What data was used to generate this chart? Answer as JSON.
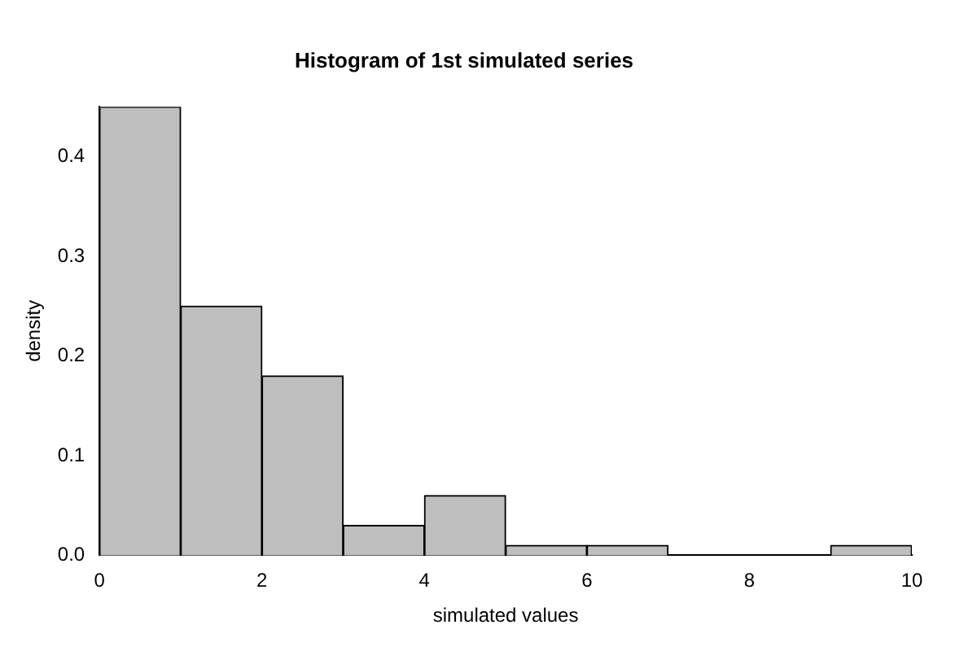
{
  "chart_data": {
    "type": "histogram",
    "title": "Histogram of 1st simulated series",
    "xlabel": "simulated values",
    "ylabel": "density",
    "bins": [
      0,
      1,
      2,
      3,
      4,
      5,
      6,
      7,
      8,
      9,
      10
    ],
    "values": [
      0.45,
      0.25,
      0.18,
      0.03,
      0.06,
      0.01,
      0.01,
      0,
      0,
      0.01
    ],
    "color": "#bebebe",
    "xlim": [
      0,
      10
    ],
    "xticks": [
      0,
      2,
      4,
      6,
      8,
      10
    ],
    "ylim": [
      0,
      0.45
    ],
    "yticks": [
      {
        "value": 0,
        "label": "0.0"
      },
      {
        "value": 0.1,
        "label": "0.1"
      },
      {
        "value": 0.2,
        "label": "0.2"
      },
      {
        "value": 0.3,
        "label": "0.3"
      },
      {
        "value": 0.4,
        "label": "0.4"
      }
    ],
    "grid": false,
    "legend": false
  }
}
